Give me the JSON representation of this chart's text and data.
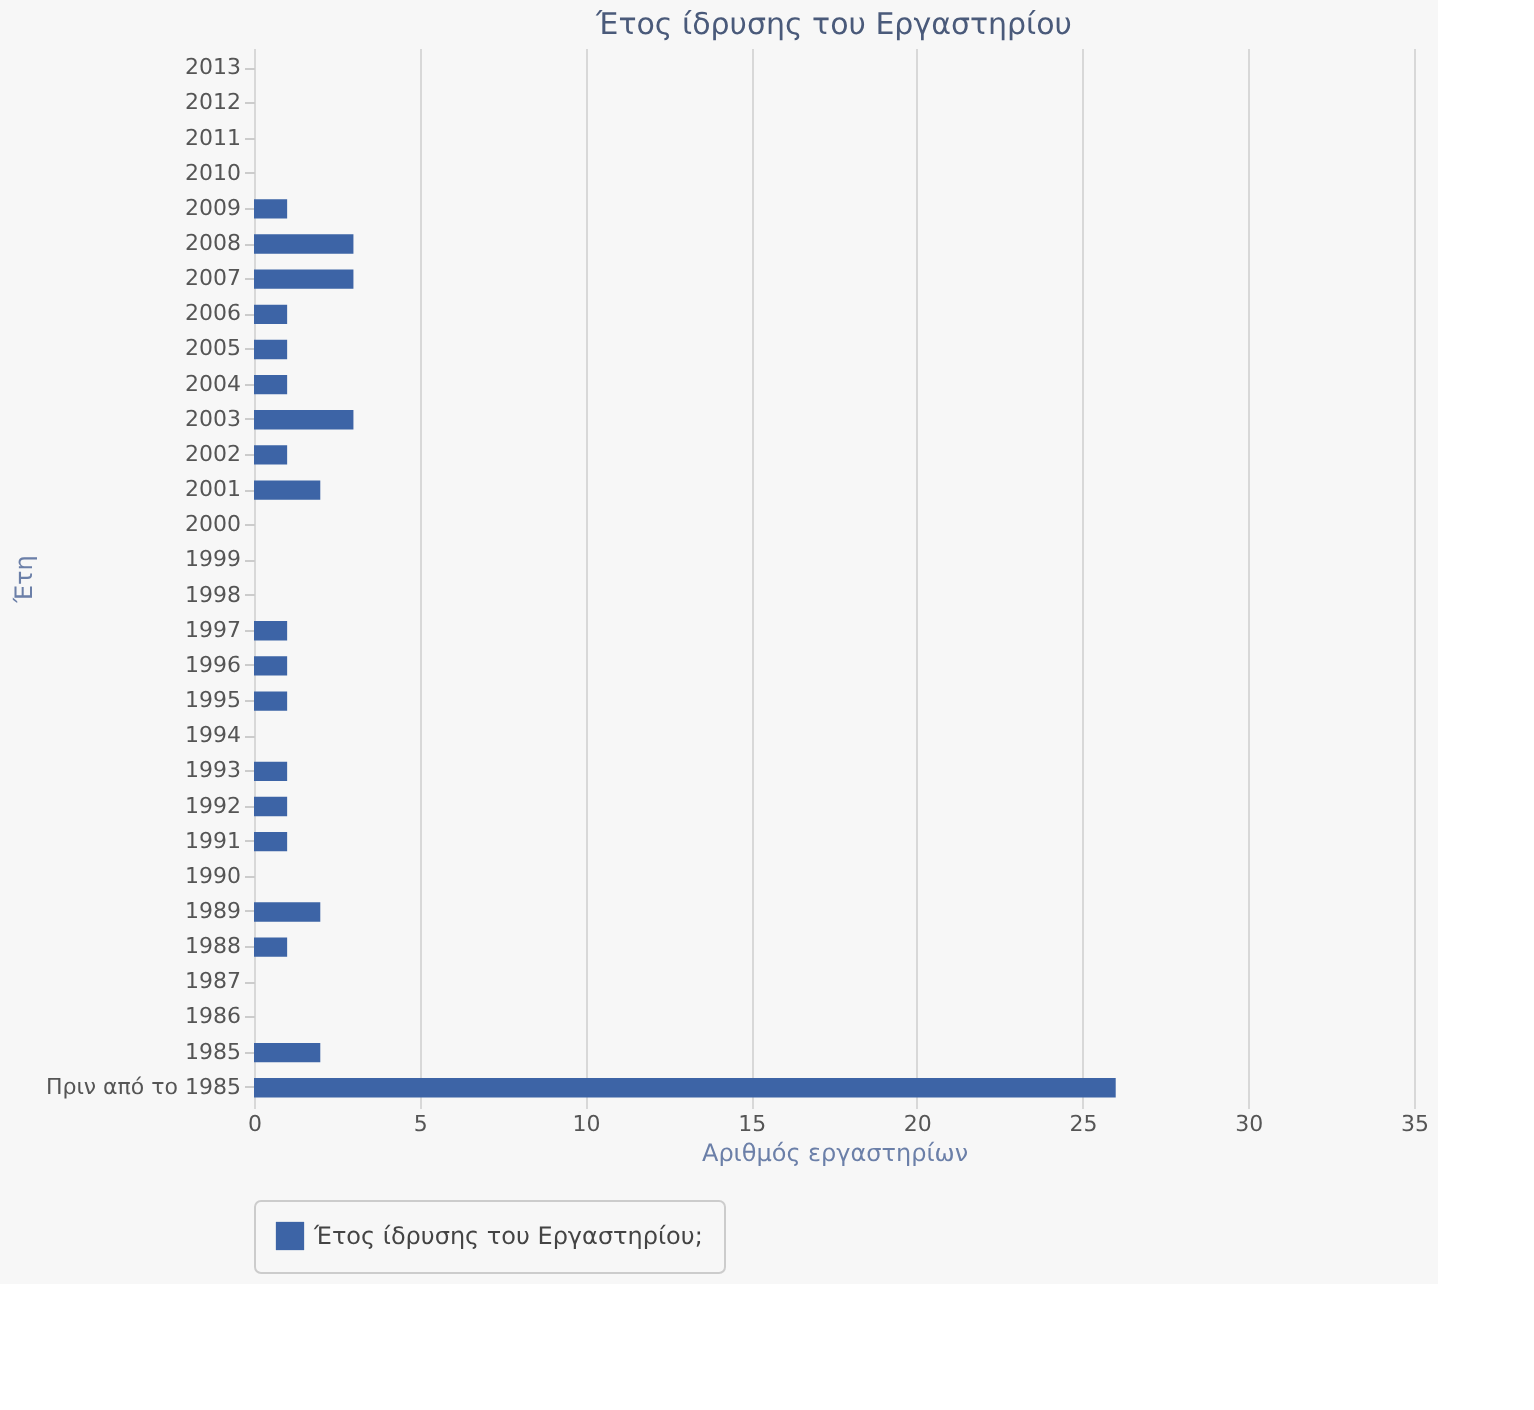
{
  "chart_data": {
    "type": "bar",
    "orientation": "horizontal",
    "title": "Έτος ίδρυσης του Εργαστηρίου",
    "xlabel": "Αριθμός εργαστηρίων",
    "ylabel": "Έτη",
    "categories": [
      "2013",
      "2012",
      "2011",
      "2010",
      "2009",
      "2008",
      "2007",
      "2006",
      "2005",
      "2004",
      "2003",
      "2002",
      "2001",
      "2000",
      "1999",
      "1998",
      "1997",
      "1996",
      "1995",
      "1994",
      "1993",
      "1992",
      "1991",
      "1990",
      "1989",
      "1988",
      "1987",
      "1986",
      "1985",
      "Πριν από το 1985"
    ],
    "series": [
      {
        "name": "Έτος ίδρυσης του Εργαστηρίου;",
        "color": "#3d64a6",
        "values": [
          0,
          0,
          0,
          0,
          1,
          3,
          3,
          1,
          1,
          1,
          3,
          1,
          2,
          0,
          0,
          0,
          1,
          1,
          1,
          0,
          1,
          1,
          1,
          0,
          2,
          1,
          0,
          0,
          2,
          26
        ]
      }
    ],
    "xlim": [
      0,
      35
    ],
    "xticks": [
      0,
      5,
      10,
      15,
      20,
      25,
      30,
      35
    ],
    "grid": "x",
    "legend": "bottom"
  }
}
